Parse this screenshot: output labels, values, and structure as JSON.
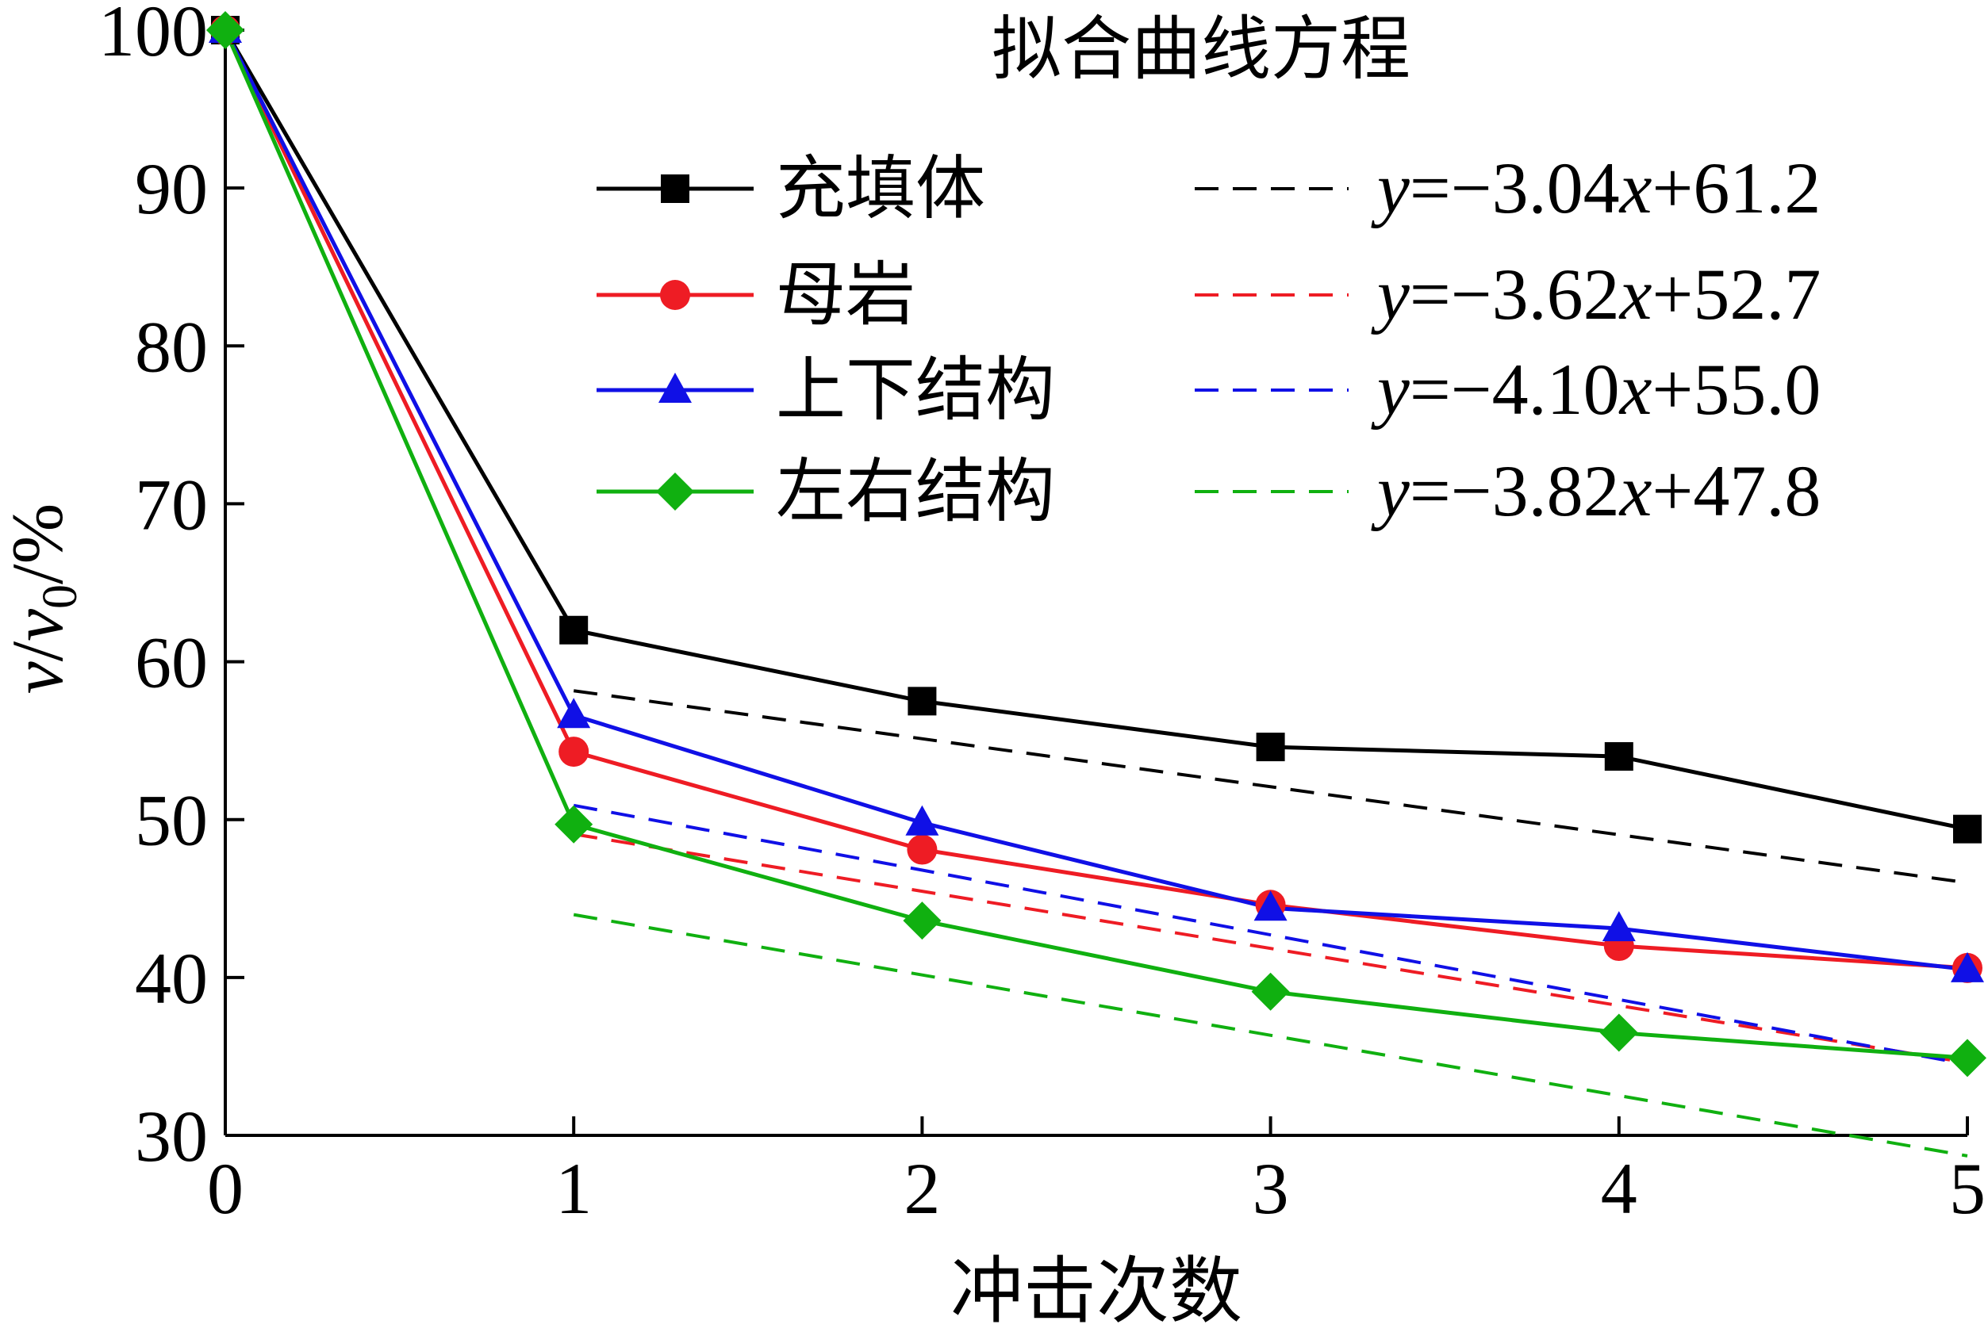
{
  "chart_data": {
    "type": "line",
    "title": "",
    "xlabel": "冲击次数",
    "ylabel": {
      "v": "v",
      "slash1": "/",
      "v0": "v",
      "sub0": "0",
      "slash2": "/%"
    },
    "xlim": [
      0,
      5
    ],
    "ylim": [
      30,
      100
    ],
    "xticks": [
      "0",
      "1",
      "2",
      "3",
      "4",
      "5"
    ],
    "yticks": [
      "30",
      "40",
      "50",
      "60",
      "70",
      "80",
      "90",
      "100"
    ],
    "x": [
      0,
      1,
      2,
      3,
      4,
      5
    ],
    "legend_title": "拟合曲线方程",
    "legend_placement": "top-right",
    "series": [
      {
        "name": "充填体",
        "color": "#000000",
        "marker": "square",
        "values": [
          100,
          62.0,
          57.5,
          54.6,
          54.0,
          49.4
        ],
        "fit": {
          "slope": -3.04,
          "intercept": 61.2,
          "label": {
            "y": "y",
            "eq": "=−3.04",
            "x": "x",
            "rest": "+61.2"
          }
        }
      },
      {
        "name": "母岩",
        "color": "#ee1c24",
        "marker": "circle",
        "values": [
          100,
          54.3,
          48.1,
          44.6,
          42.0,
          40.6
        ],
        "fit": {
          "slope": -3.62,
          "intercept": 52.7,
          "label": {
            "y": "y",
            "eq": "=−3.62",
            "x": "x",
            "rest": "+52.7"
          }
        }
      },
      {
        "name": "上下结构",
        "color": "#1010e6",
        "marker": "triangle",
        "values": [
          100,
          56.6,
          49.8,
          44.4,
          43.1,
          40.5
        ],
        "fit": {
          "slope": -4.1,
          "intercept": 55.0,
          "label": {
            "y": "y",
            "eq": "=−4.10",
            "x": "x",
            "rest": "+55.0"
          }
        }
      },
      {
        "name": "左右结构",
        "color": "#10b010",
        "marker": "diamond",
        "values": [
          100,
          49.7,
          43.6,
          39.1,
          36.5,
          34.9
        ],
        "fit": {
          "slope": -3.82,
          "intercept": 47.8,
          "label": {
            "y": "y",
            "eq": "=−3.82",
            "x": "x",
            "rest": "+47.8"
          }
        }
      }
    ]
  }
}
